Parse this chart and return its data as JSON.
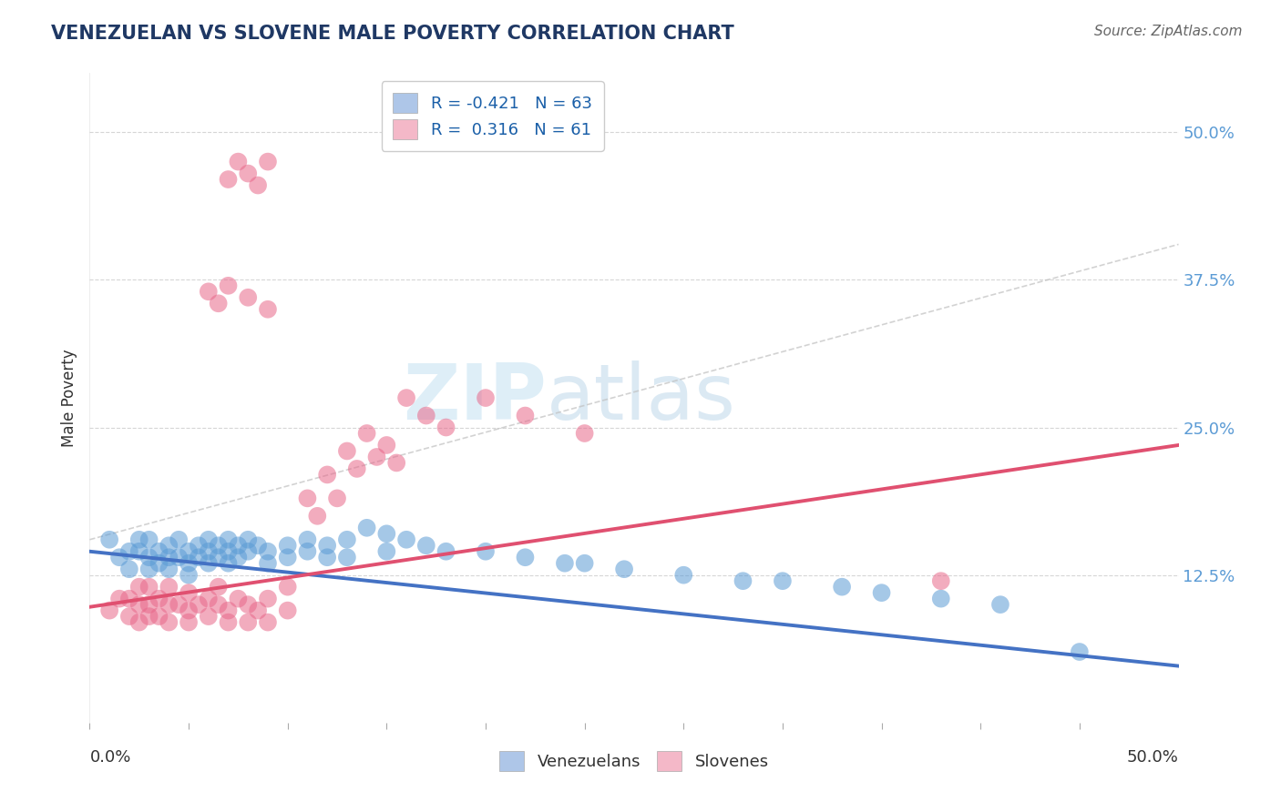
{
  "title": "VENEZUELAN VS SLOVENE MALE POVERTY CORRELATION CHART",
  "source": "Source: ZipAtlas.com",
  "ylabel": "Male Poverty",
  "ylim": [
    0.0,
    0.55
  ],
  "xlim": [
    0.0,
    0.55
  ],
  "venezuelan_color": "#5b9bd5",
  "slovene_color": "#e8688a",
  "ven_line_color": "#4472c4",
  "slo_line_color": "#e05070",
  "legend_ven_color": "#aec6e8",
  "legend_slo_color": "#f4b8c8",
  "gray_line_color": "#c0c0c0",
  "background_color": "#ffffff",
  "grid_color": "#cccccc",
  "right_tick_color": "#5b9bd5",
  "title_color": "#1f3864",
  "source_color": "#666666",
  "watermark_color": "#d0e8f5",
  "ven_line_start_y": 0.145,
  "ven_line_end_y": 0.048,
  "slo_line_start_y": 0.098,
  "slo_line_end_y": 0.235,
  "gray_line_start_y": 0.155,
  "gray_line_end_y": 0.405,
  "venezuelan_scatter": [
    [
      0.01,
      0.155
    ],
    [
      0.015,
      0.14
    ],
    [
      0.02,
      0.145
    ],
    [
      0.02,
      0.13
    ],
    [
      0.025,
      0.145
    ],
    [
      0.025,
      0.155
    ],
    [
      0.03,
      0.14
    ],
    [
      0.03,
      0.13
    ],
    [
      0.03,
      0.155
    ],
    [
      0.035,
      0.145
    ],
    [
      0.035,
      0.135
    ],
    [
      0.04,
      0.15
    ],
    [
      0.04,
      0.13
    ],
    [
      0.04,
      0.14
    ],
    [
      0.045,
      0.155
    ],
    [
      0.045,
      0.14
    ],
    [
      0.05,
      0.145
    ],
    [
      0.05,
      0.135
    ],
    [
      0.05,
      0.125
    ],
    [
      0.055,
      0.15
    ],
    [
      0.055,
      0.14
    ],
    [
      0.06,
      0.155
    ],
    [
      0.06,
      0.145
    ],
    [
      0.06,
      0.135
    ],
    [
      0.065,
      0.15
    ],
    [
      0.065,
      0.14
    ],
    [
      0.07,
      0.155
    ],
    [
      0.07,
      0.145
    ],
    [
      0.07,
      0.135
    ],
    [
      0.075,
      0.15
    ],
    [
      0.075,
      0.14
    ],
    [
      0.08,
      0.155
    ],
    [
      0.08,
      0.145
    ],
    [
      0.085,
      0.15
    ],
    [
      0.09,
      0.145
    ],
    [
      0.09,
      0.135
    ],
    [
      0.1,
      0.15
    ],
    [
      0.1,
      0.14
    ],
    [
      0.11,
      0.155
    ],
    [
      0.11,
      0.145
    ],
    [
      0.12,
      0.15
    ],
    [
      0.12,
      0.14
    ],
    [
      0.13,
      0.155
    ],
    [
      0.13,
      0.14
    ],
    [
      0.14,
      0.165
    ],
    [
      0.15,
      0.16
    ],
    [
      0.15,
      0.145
    ],
    [
      0.16,
      0.155
    ],
    [
      0.17,
      0.15
    ],
    [
      0.18,
      0.145
    ],
    [
      0.2,
      0.145
    ],
    [
      0.22,
      0.14
    ],
    [
      0.24,
      0.135
    ],
    [
      0.25,
      0.135
    ],
    [
      0.27,
      0.13
    ],
    [
      0.3,
      0.125
    ],
    [
      0.33,
      0.12
    ],
    [
      0.35,
      0.12
    ],
    [
      0.38,
      0.115
    ],
    [
      0.4,
      0.11
    ],
    [
      0.43,
      0.105
    ],
    [
      0.46,
      0.1
    ],
    [
      0.5,
      0.06
    ]
  ],
  "slovene_scatter": [
    [
      0.01,
      0.095
    ],
    [
      0.015,
      0.105
    ],
    [
      0.02,
      0.09
    ],
    [
      0.02,
      0.105
    ],
    [
      0.025,
      0.1
    ],
    [
      0.025,
      0.115
    ],
    [
      0.025,
      0.085
    ],
    [
      0.03,
      0.1
    ],
    [
      0.03,
      0.09
    ],
    [
      0.03,
      0.115
    ],
    [
      0.035,
      0.105
    ],
    [
      0.035,
      0.09
    ],
    [
      0.04,
      0.1
    ],
    [
      0.04,
      0.085
    ],
    [
      0.04,
      0.115
    ],
    [
      0.045,
      0.1
    ],
    [
      0.05,
      0.095
    ],
    [
      0.05,
      0.085
    ],
    [
      0.05,
      0.11
    ],
    [
      0.055,
      0.1
    ],
    [
      0.06,
      0.105
    ],
    [
      0.06,
      0.09
    ],
    [
      0.065,
      0.1
    ],
    [
      0.065,
      0.115
    ],
    [
      0.07,
      0.095
    ],
    [
      0.07,
      0.085
    ],
    [
      0.075,
      0.105
    ],
    [
      0.08,
      0.1
    ],
    [
      0.08,
      0.085
    ],
    [
      0.085,
      0.095
    ],
    [
      0.09,
      0.105
    ],
    [
      0.09,
      0.085
    ],
    [
      0.1,
      0.095
    ],
    [
      0.1,
      0.115
    ],
    [
      0.11,
      0.19
    ],
    [
      0.115,
      0.175
    ],
    [
      0.12,
      0.21
    ],
    [
      0.125,
      0.19
    ],
    [
      0.13,
      0.23
    ],
    [
      0.135,
      0.215
    ],
    [
      0.14,
      0.245
    ],
    [
      0.145,
      0.225
    ],
    [
      0.15,
      0.235
    ],
    [
      0.155,
      0.22
    ],
    [
      0.16,
      0.275
    ],
    [
      0.17,
      0.26
    ],
    [
      0.18,
      0.25
    ],
    [
      0.2,
      0.275
    ],
    [
      0.22,
      0.26
    ],
    [
      0.25,
      0.245
    ],
    [
      0.06,
      0.365
    ],
    [
      0.065,
      0.355
    ],
    [
      0.07,
      0.37
    ],
    [
      0.08,
      0.36
    ],
    [
      0.09,
      0.35
    ],
    [
      0.07,
      0.46
    ],
    [
      0.075,
      0.475
    ],
    [
      0.08,
      0.465
    ],
    [
      0.085,
      0.455
    ],
    [
      0.09,
      0.475
    ],
    [
      0.43,
      0.12
    ]
  ]
}
